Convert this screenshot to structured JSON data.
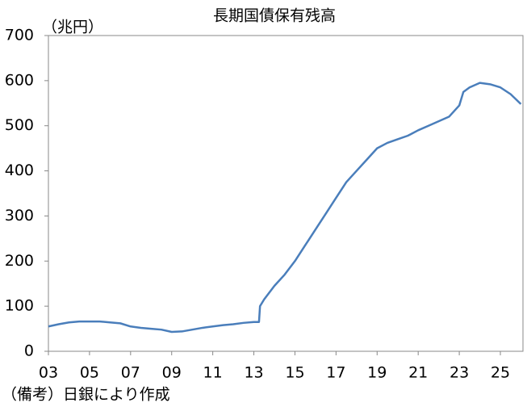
{
  "chart_data": {
    "type": "line",
    "title": "長期国債保有残高",
    "y_unit_label": "（兆円）",
    "note": "（備考）日銀により作成",
    "x": [
      2003.0,
      2003.5,
      2004.0,
      2004.5,
      2005.0,
      2005.5,
      2006.0,
      2006.5,
      2007.0,
      2007.5,
      2008.0,
      2008.5,
      2009.0,
      2009.5,
      2010.0,
      2010.5,
      2011.0,
      2011.5,
      2012.0,
      2012.5,
      2013.0,
      2013.25,
      2013.3,
      2013.5,
      2014.0,
      2014.5,
      2015.0,
      2015.5,
      2016.0,
      2016.5,
      2017.0,
      2017.5,
      2018.0,
      2018.5,
      2019.0,
      2019.5,
      2020.0,
      2020.5,
      2021.0,
      2021.5,
      2022.0,
      2022.5,
      2023.0,
      2023.2,
      2023.5,
      2024.0,
      2024.5,
      2025.0,
      2025.5,
      2026.0
    ],
    "series": [
      {
        "color": "#4a7ebb",
        "values": [
          55,
          60,
          64,
          66,
          66,
          66,
          64,
          62,
          55,
          52,
          50,
          48,
          43,
          44,
          48,
          52,
          55,
          58,
          60,
          63,
          65,
          65,
          100,
          115,
          145,
          170,
          200,
          235,
          270,
          305,
          340,
          375,
          400,
          425,
          450,
          462,
          470,
          478,
          490,
          500,
          510,
          520,
          545,
          575,
          585,
          595,
          592,
          585,
          570,
          548
        ]
      }
    ],
    "xlim": [
      2003,
      2026.1
    ],
    "xticks": [
      {
        "value": 2003,
        "label": "03"
      },
      {
        "value": 2005,
        "label": "05"
      },
      {
        "value": 2007,
        "label": "07"
      },
      {
        "value": 2009,
        "label": "09"
      },
      {
        "value": 2011,
        "label": "11"
      },
      {
        "value": 2013,
        "label": "13"
      },
      {
        "value": 2015,
        "label": "15"
      },
      {
        "value": 2017,
        "label": "17"
      },
      {
        "value": 2019,
        "label": "19"
      },
      {
        "value": 2021,
        "label": "21"
      },
      {
        "value": 2023,
        "label": "23"
      },
      {
        "value": 2025,
        "label": "25"
      }
    ],
    "ylim": [
      0,
      700
    ],
    "yticks": [
      0,
      100,
      200,
      300,
      400,
      500,
      600,
      700
    ],
    "grid": false
  }
}
